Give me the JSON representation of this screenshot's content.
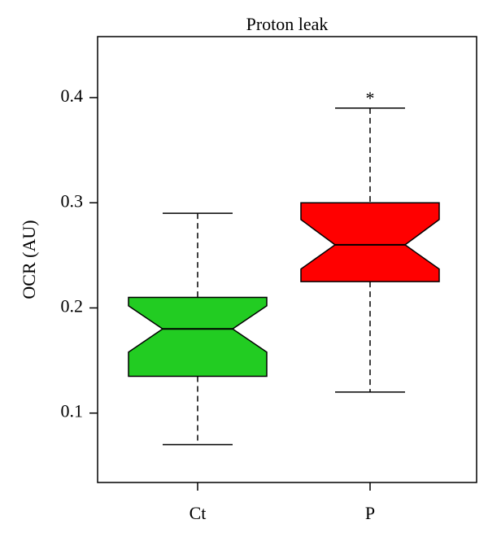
{
  "chart_data": {
    "type": "boxplot",
    "title": "Proton leak",
    "y_label": "OCR (AU)",
    "categories": [
      "Ct",
      "P"
    ],
    "series": [
      {
        "name": "Ct",
        "color": "#22cc22",
        "whisker_low": 0.07,
        "q1": 0.135,
        "median": 0.18,
        "q3": 0.21,
        "whisker_high": 0.29,
        "notch_low": 0.158,
        "notch_high": 0.202
      },
      {
        "name": "P",
        "color": "#ff0000",
        "whisker_low": 0.12,
        "q1": 0.225,
        "median": 0.26,
        "q3": 0.3,
        "whisker_high": 0.39,
        "notch_low": 0.237,
        "notch_high": 0.284
      }
    ],
    "annotations": [
      {
        "text": "*",
        "category": 1
      }
    ],
    "ylim": [
      0.034,
      0.458
    ],
    "yticks": [
      0.1,
      0.2,
      0.3,
      0.4
    ]
  }
}
